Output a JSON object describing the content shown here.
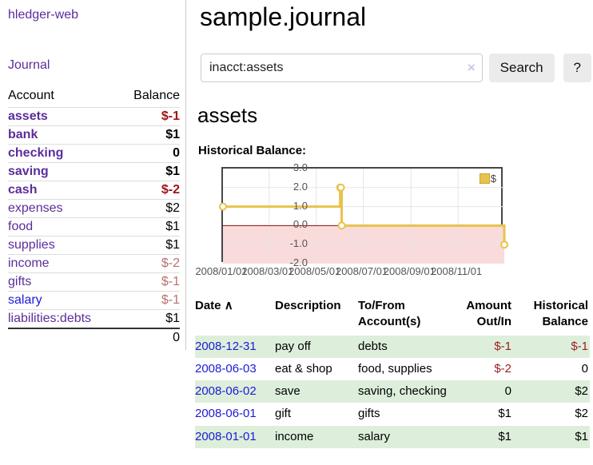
{
  "colors": {
    "accent_purple": "#5b2d9b",
    "link_blue": "#1b1bd6",
    "negative_strong": "#a01414",
    "negative_muted": "#b7716f",
    "row_stripe_green": "#ddefdb",
    "button_gray": "#ebebeb",
    "chart_line_gold": "#e9c24b"
  },
  "sidebar": {
    "brand": "hledger-web",
    "journal_link": "Journal",
    "accounts_table": {
      "headers": {
        "account": "Account",
        "balance": "Balance"
      },
      "rows": [
        {
          "name": "assets",
          "balance": "$-1",
          "depth": 1,
          "bold": true
        },
        {
          "name": "bank",
          "balance": "$1",
          "depth": 2,
          "bold": true
        },
        {
          "name": "checking",
          "balance": "0",
          "depth": 3,
          "bold": true
        },
        {
          "name": "saving",
          "balance": "$1",
          "depth": 3,
          "bold": true
        },
        {
          "name": "cash",
          "balance": "$-2",
          "depth": 2,
          "bold": true
        },
        {
          "name": "expenses",
          "balance": "$2",
          "depth": 1,
          "bold": false
        },
        {
          "name": "food",
          "balance": "$1",
          "depth": 2,
          "bold": false
        },
        {
          "name": "supplies",
          "balance": "$1",
          "depth": 2,
          "bold": false
        },
        {
          "name": "income",
          "balance": "$-2",
          "depth": 1,
          "bold": false
        },
        {
          "name": "gifts",
          "balance": "$-1",
          "depth": 2,
          "bold": false
        },
        {
          "name": "salary",
          "balance": "$-1",
          "depth": 2,
          "bold": false,
          "blue": true
        },
        {
          "name": "liabilities:debts",
          "balance": "$1",
          "depth": 1,
          "bold": false
        }
      ],
      "total": "0"
    }
  },
  "main": {
    "title": "sample.journal",
    "search": {
      "value": "inacct:assets",
      "clear_icon": "×",
      "search_button": "Search",
      "help_button": "?"
    },
    "account_heading": "assets",
    "chart_heading": "Historical Balance:",
    "register": {
      "headers": {
        "date": "Date",
        "sort_icon": "∧",
        "description": "Description",
        "accounts": "To/From Account(s)",
        "amount": "Amount Out/In",
        "balance": "Historical Balance"
      },
      "rows": [
        {
          "date": "2008-12-31",
          "description": "pay off",
          "accounts": "debts",
          "amount": "$-1",
          "balance": "$-1"
        },
        {
          "date": "2008-06-03",
          "description": "eat & shop",
          "accounts": "food, supplies",
          "amount": "$-2",
          "balance": "0"
        },
        {
          "date": "2008-06-02",
          "description": "save",
          "accounts": "saving, checking",
          "amount": "0",
          "balance": "$2"
        },
        {
          "date": "2008-06-01",
          "description": "gift",
          "accounts": "gifts",
          "amount": "$1",
          "balance": "$2"
        },
        {
          "date": "2008-01-01",
          "description": "income",
          "accounts": "salary",
          "amount": "$1",
          "balance": "$1"
        }
      ]
    }
  },
  "chart_data": {
    "type": "line",
    "title": "Historical Balance:",
    "step": true,
    "series": [
      {
        "name": "$",
        "color": "#e9c24b",
        "points": [
          [
            "2008-01-01",
            1
          ],
          [
            "2008-06-01",
            2
          ],
          [
            "2008-06-02",
            2
          ],
          [
            "2008-06-03",
            0
          ],
          [
            "2008-12-31",
            -1
          ]
        ]
      }
    ],
    "xrange": [
      "2008-01-01",
      "2008-12-31"
    ],
    "ylim": [
      -2,
      3
    ],
    "yticks": [
      "3.0",
      "2.0",
      "1.0",
      "0.0",
      "-1.0",
      "-2.0"
    ],
    "xticks": [
      "2008/01/01",
      "2008/03/01",
      "2008/05/01",
      "2008/07/01",
      "2008/09/01",
      "2008/11/01"
    ],
    "grid": true,
    "legend": {
      "label": "$",
      "position": "top-right"
    },
    "negative_region_color": "#f9dbdb",
    "zero_line_color": "#8c0b0b",
    "grid_color": "#e5e5e5",
    "marker": {
      "fill": "#ffffff",
      "stroke": "#e9c24b",
      "radius": 4
    }
  }
}
